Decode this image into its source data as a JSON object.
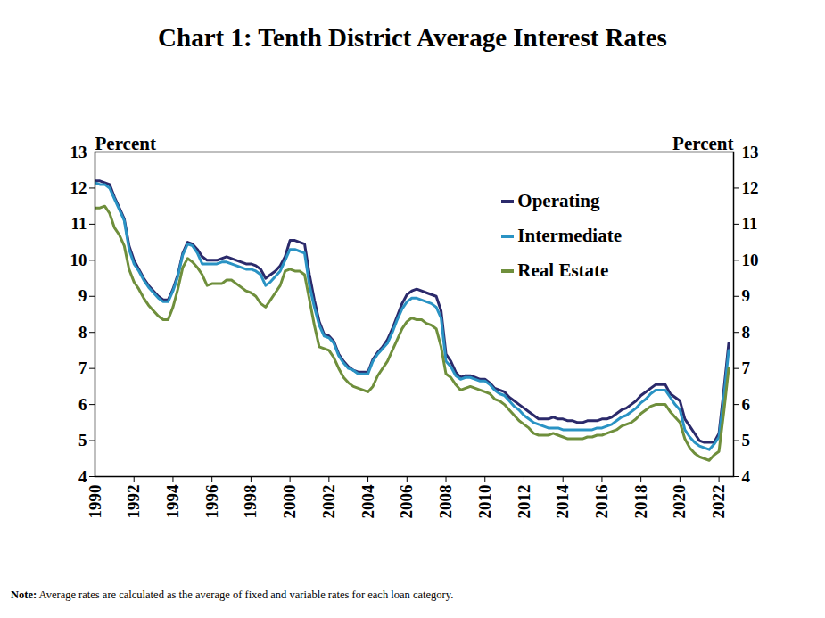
{
  "chart_data": {
    "type": "line",
    "title": "Chart 1: Tenth District Average Interest Rates",
    "ylabel": "Percent",
    "y2label": "Percent",
    "note_label": "Note:",
    "note": "Average rates are calculated as the average of fixed and variable rates for each loan category.",
    "legend": "upper right",
    "grid": false,
    "xlim": [
      1990,
      2022.75
    ],
    "xticks": [
      1990,
      1992,
      1994,
      1996,
      1998,
      2000,
      2002,
      2004,
      2006,
      2008,
      2010,
      2012,
      2014,
      2016,
      2018,
      2020,
      2022
    ],
    "ylim": [
      4,
      13
    ],
    "yticks": [
      4,
      5,
      6,
      7,
      8,
      9,
      10,
      11,
      12,
      13
    ],
    "x": [
      1990,
      1990.25,
      1990.5,
      1990.75,
      1991,
      1991.25,
      1991.5,
      1991.75,
      1992,
      1992.25,
      1992.5,
      1992.75,
      1993,
      1993.25,
      1993.5,
      1993.75,
      1994,
      1994.25,
      1994.5,
      1994.75,
      1995,
      1995.25,
      1995.5,
      1995.75,
      1996,
      1996.25,
      1996.5,
      1996.75,
      1997,
      1997.25,
      1997.5,
      1997.75,
      1998,
      1998.25,
      1998.5,
      1998.75,
      1999,
      1999.25,
      1999.5,
      1999.75,
      2000,
      2000.25,
      2000.5,
      2000.75,
      2001,
      2001.25,
      2001.5,
      2001.75,
      2002,
      2002.25,
      2002.5,
      2002.75,
      2003,
      2003.25,
      2003.5,
      2003.75,
      2004,
      2004.25,
      2004.5,
      2004.75,
      2005,
      2005.25,
      2005.5,
      2005.75,
      2006,
      2006.25,
      2006.5,
      2006.75,
      2007,
      2007.25,
      2007.5,
      2007.75,
      2008,
      2008.25,
      2008.5,
      2008.75,
      2009,
      2009.25,
      2009.5,
      2009.75,
      2010,
      2010.25,
      2010.5,
      2010.75,
      2011,
      2011.25,
      2011.5,
      2011.75,
      2012,
      2012.25,
      2012.5,
      2012.75,
      2013,
      2013.25,
      2013.5,
      2013.75,
      2014,
      2014.25,
      2014.5,
      2014.75,
      2015,
      2015.25,
      2015.5,
      2015.75,
      2016,
      2016.25,
      2016.5,
      2016.75,
      2017,
      2017.25,
      2017.5,
      2017.75,
      2018,
      2018.25,
      2018.5,
      2018.75,
      2019,
      2019.25,
      2019.5,
      2019.75,
      2020,
      2020.25,
      2020.5,
      2020.75,
      2021,
      2021.25,
      2021.5,
      2021.75,
      2022,
      2022.25,
      2022.5
    ],
    "series": [
      {
        "name": "Operating",
        "color": "#2b2a6b",
        "values": [
          12.2,
          12.2,
          12.15,
          12.1,
          11.75,
          11.45,
          11.15,
          10.4,
          10.0,
          9.75,
          9.5,
          9.3,
          9.15,
          9.0,
          8.9,
          8.9,
          9.2,
          9.6,
          10.2,
          10.5,
          10.45,
          10.3,
          10.1,
          10.0,
          10.0,
          10.0,
          10.05,
          10.1,
          10.05,
          10.0,
          9.95,
          9.9,
          9.9,
          9.85,
          9.75,
          9.5,
          9.6,
          9.7,
          9.85,
          10.1,
          10.55,
          10.55,
          10.5,
          10.45,
          9.6,
          8.9,
          8.3,
          7.95,
          7.9,
          7.75,
          7.4,
          7.2,
          7.05,
          6.95,
          6.9,
          6.9,
          6.9,
          7.25,
          7.45,
          7.6,
          7.8,
          8.1,
          8.45,
          8.8,
          9.05,
          9.15,
          9.2,
          9.15,
          9.1,
          9.05,
          9.0,
          8.6,
          7.4,
          7.2,
          6.9,
          6.75,
          6.8,
          6.8,
          6.75,
          6.7,
          6.7,
          6.6,
          6.45,
          6.4,
          6.35,
          6.2,
          6.1,
          6.0,
          5.9,
          5.8,
          5.7,
          5.6,
          5.6,
          5.6,
          5.65,
          5.6,
          5.6,
          5.55,
          5.55,
          5.5,
          5.5,
          5.55,
          5.55,
          5.55,
          5.6,
          5.6,
          5.65,
          5.75,
          5.85,
          5.9,
          6.0,
          6.1,
          6.25,
          6.35,
          6.45,
          6.55,
          6.55,
          6.55,
          6.3,
          6.2,
          6.1,
          5.6,
          5.4,
          5.2,
          5.0,
          4.95,
          4.95,
          4.95,
          5.2,
          6.4,
          7.7
        ]
      },
      {
        "name": "Intermediate",
        "color": "#2a93c4",
        "values": [
          12.15,
          12.1,
          12.1,
          12.0,
          11.7,
          11.4,
          11.1,
          10.3,
          9.9,
          9.7,
          9.45,
          9.25,
          9.1,
          8.95,
          8.85,
          8.85,
          9.15,
          9.55,
          10.15,
          10.45,
          10.4,
          10.2,
          9.9,
          9.9,
          9.9,
          9.9,
          9.95,
          9.95,
          9.9,
          9.85,
          9.8,
          9.75,
          9.75,
          9.7,
          9.6,
          9.3,
          9.4,
          9.55,
          9.7,
          10.0,
          10.3,
          10.3,
          10.25,
          10.2,
          9.3,
          8.7,
          8.2,
          7.9,
          7.85,
          7.7,
          7.35,
          7.15,
          7.0,
          6.95,
          6.85,
          6.85,
          6.85,
          7.2,
          7.4,
          7.55,
          7.7,
          8.0,
          8.35,
          8.65,
          8.85,
          8.95,
          8.95,
          8.9,
          8.85,
          8.8,
          8.7,
          8.4,
          7.2,
          7.05,
          6.8,
          6.7,
          6.75,
          6.75,
          6.7,
          6.65,
          6.65,
          6.55,
          6.4,
          6.3,
          6.25,
          6.1,
          5.95,
          5.85,
          5.7,
          5.6,
          5.5,
          5.45,
          5.4,
          5.35,
          5.35,
          5.35,
          5.3,
          5.3,
          5.3,
          5.3,
          5.3,
          5.3,
          5.3,
          5.35,
          5.35,
          5.4,
          5.45,
          5.55,
          5.65,
          5.7,
          5.8,
          5.9,
          6.05,
          6.15,
          6.3,
          6.4,
          6.4,
          6.4,
          6.2,
          6.0,
          5.85,
          5.3,
          5.1,
          4.95,
          4.85,
          4.8,
          4.75,
          4.9,
          5.1,
          6.2,
          7.5
        ]
      },
      {
        "name": "Real Estate",
        "color": "#6f8f3c",
        "values": [
          11.45,
          11.45,
          11.5,
          11.3,
          10.9,
          10.7,
          10.4,
          9.75,
          9.4,
          9.2,
          8.95,
          8.75,
          8.6,
          8.45,
          8.35,
          8.35,
          8.7,
          9.2,
          9.8,
          10.05,
          9.95,
          9.8,
          9.6,
          9.3,
          9.35,
          9.35,
          9.35,
          9.45,
          9.45,
          9.35,
          9.25,
          9.15,
          9.1,
          9.0,
          8.8,
          8.7,
          8.9,
          9.1,
          9.3,
          9.7,
          9.75,
          9.7,
          9.7,
          9.6,
          8.9,
          8.2,
          7.6,
          7.55,
          7.5,
          7.3,
          7.0,
          6.75,
          6.6,
          6.5,
          6.45,
          6.4,
          6.35,
          6.5,
          6.8,
          7.0,
          7.2,
          7.5,
          7.8,
          8.1,
          8.3,
          8.4,
          8.35,
          8.35,
          8.25,
          8.2,
          8.1,
          7.6,
          6.85,
          6.75,
          6.55,
          6.4,
          6.45,
          6.5,
          6.45,
          6.4,
          6.35,
          6.3,
          6.15,
          6.1,
          6.0,
          5.85,
          5.7,
          5.55,
          5.45,
          5.35,
          5.2,
          5.15,
          5.15,
          5.15,
          5.2,
          5.15,
          5.1,
          5.05,
          5.05,
          5.05,
          5.05,
          5.1,
          5.1,
          5.15,
          5.15,
          5.2,
          5.25,
          5.3,
          5.4,
          5.45,
          5.5,
          5.6,
          5.75,
          5.85,
          5.95,
          6.0,
          6.0,
          6.0,
          5.8,
          5.65,
          5.5,
          5.05,
          4.8,
          4.65,
          4.55,
          4.5,
          4.45,
          4.6,
          4.7,
          5.8,
          7.0
        ]
      }
    ]
  }
}
